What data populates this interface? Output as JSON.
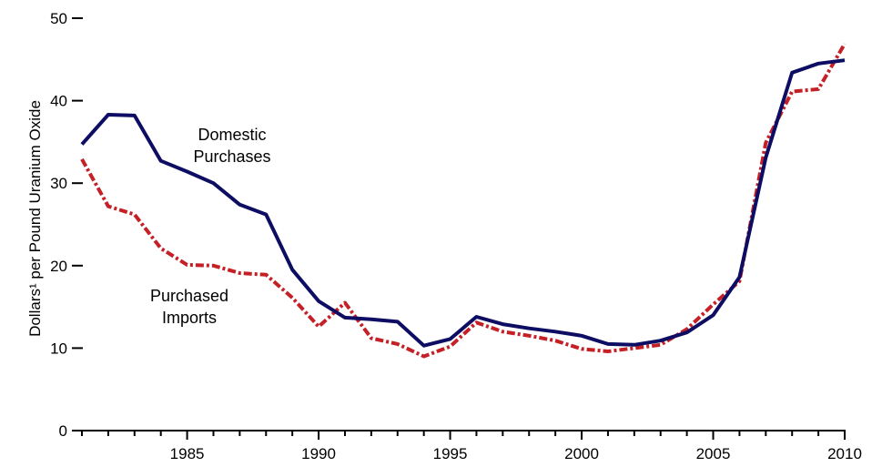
{
  "chart_data": {
    "type": "line",
    "title": "",
    "xlabel": "",
    "ylabel": "Dollars¹ per Pound Uranium Oxide",
    "xlim": [
      1981,
      2010
    ],
    "ylim": [
      0,
      50
    ],
    "x_ticks": [
      1985,
      1990,
      1995,
      2000,
      2005,
      2010
    ],
    "y_ticks": [
      0,
      10,
      20,
      30,
      40,
      50
    ],
    "grid": false,
    "legend": "none",
    "annotations": [
      {
        "lines": [
          "Domestic",
          "Purchases"
        ],
        "series": "Domestic Purchases"
      },
      {
        "lines": [
          "Purchased",
          "Imports"
        ],
        "series": "Purchased Imports"
      }
    ],
    "series": [
      {
        "name": "Domestic Purchases",
        "color": "#0d0d63",
        "style": "solid",
        "x": [
          1981,
          1982,
          1983,
          1984,
          1985,
          1986,
          1987,
          1988,
          1989,
          1990,
          1991,
          1992,
          1993,
          1994,
          1995,
          1996,
          1997,
          1998,
          1999,
          2000,
          2001,
          2002,
          2003,
          2004,
          2005,
          2006,
          2007,
          2008,
          2009,
          2010
        ],
        "values": [
          34.7,
          38.3,
          38.2,
          32.7,
          31.4,
          30.0,
          27.4,
          26.2,
          19.5,
          15.7,
          13.7,
          13.5,
          13.2,
          10.3,
          11.1,
          13.8,
          12.9,
          12.4,
          12.0,
          11.5,
          10.5,
          10.4,
          10.9,
          11.9,
          14.0,
          18.6,
          33.1,
          43.4,
          44.5,
          44.9
        ]
      },
      {
        "name": "Purchased Imports",
        "color": "#c42026",
        "style": "dashed",
        "x": [
          1981,
          1982,
          1983,
          1984,
          1985,
          1986,
          1987,
          1988,
          1989,
          1990,
          1991,
          1992,
          1993,
          1994,
          1995,
          1996,
          1997,
          1998,
          1999,
          2000,
          2001,
          2002,
          2003,
          2004,
          2005,
          2006,
          2007,
          2008,
          2009,
          2010
        ],
        "values": [
          32.9,
          27.2,
          26.2,
          22.1,
          20.1,
          20.0,
          19.1,
          18.9,
          16.1,
          12.6,
          15.5,
          11.2,
          10.5,
          9.0,
          10.2,
          13.1,
          12.0,
          11.5,
          10.9,
          9.9,
          9.6,
          10.0,
          10.4,
          12.3,
          15.3,
          18.1,
          34.9,
          41.1,
          41.4,
          46.9
        ]
      }
    ]
  }
}
